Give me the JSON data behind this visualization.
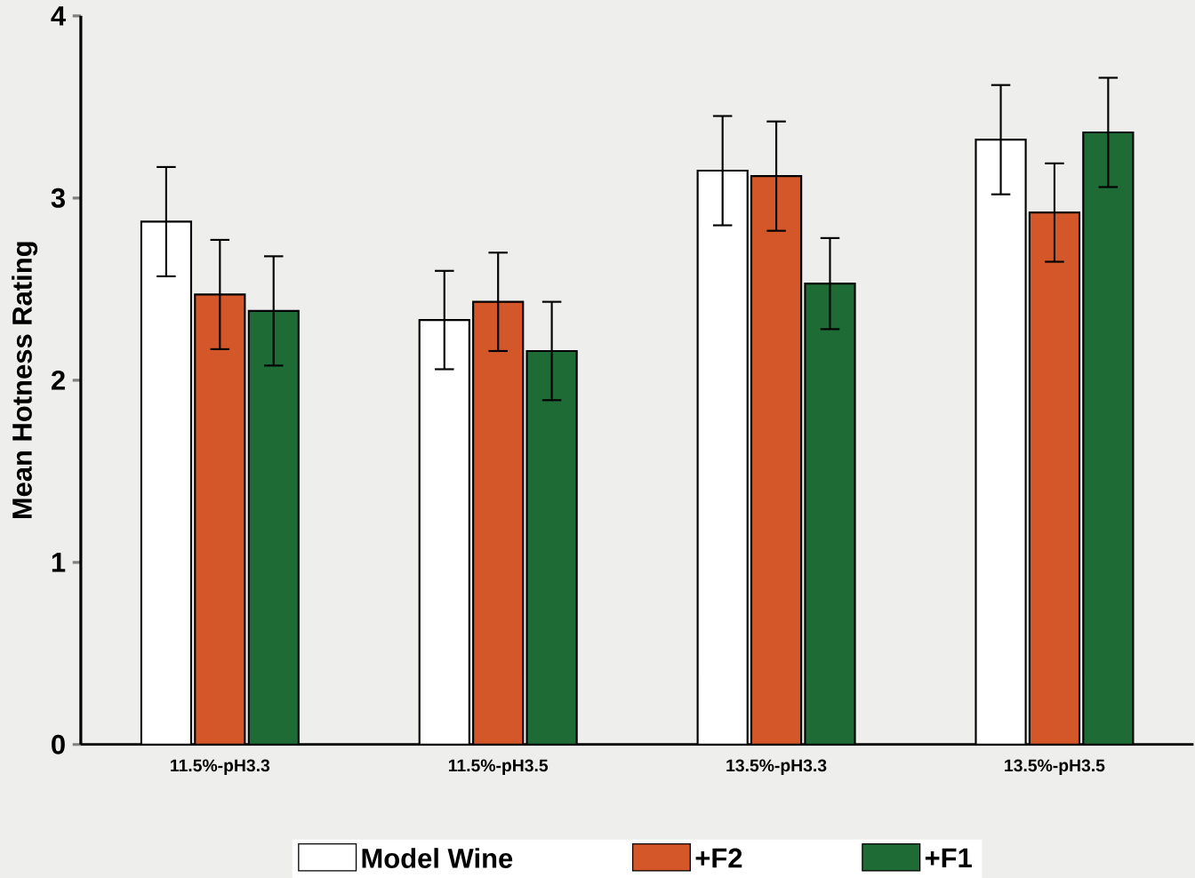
{
  "chart_data": {
    "type": "bar",
    "ylabel": "Mean Hotness Rating",
    "categories": [
      "11.5%-pH3.3",
      "11.5%-pH3.5",
      "13.5%-pH3.3",
      "13.5%-pH3.5"
    ],
    "series": [
      {
        "name": "Model Wine",
        "color": "#ffffff",
        "values": [
          2.87,
          2.33,
          3.15,
          3.32
        ],
        "errors": [
          0.3,
          0.27,
          0.3,
          0.3
        ]
      },
      {
        "name": "+F2",
        "color": "#d4572a",
        "values": [
          2.47,
          2.43,
          3.12,
          2.92
        ],
        "errors": [
          0.3,
          0.27,
          0.3,
          0.27
        ]
      },
      {
        "name": "+F1",
        "color": "#1e6b35",
        "values": [
          2.38,
          2.16,
          2.53,
          3.36
        ],
        "errors": [
          0.3,
          0.27,
          0.25,
          0.3
        ]
      }
    ],
    "ylim": [
      0,
      4
    ],
    "yticks": [
      0,
      1,
      2,
      3,
      4
    ],
    "grid": false,
    "legend": "bottom"
  }
}
